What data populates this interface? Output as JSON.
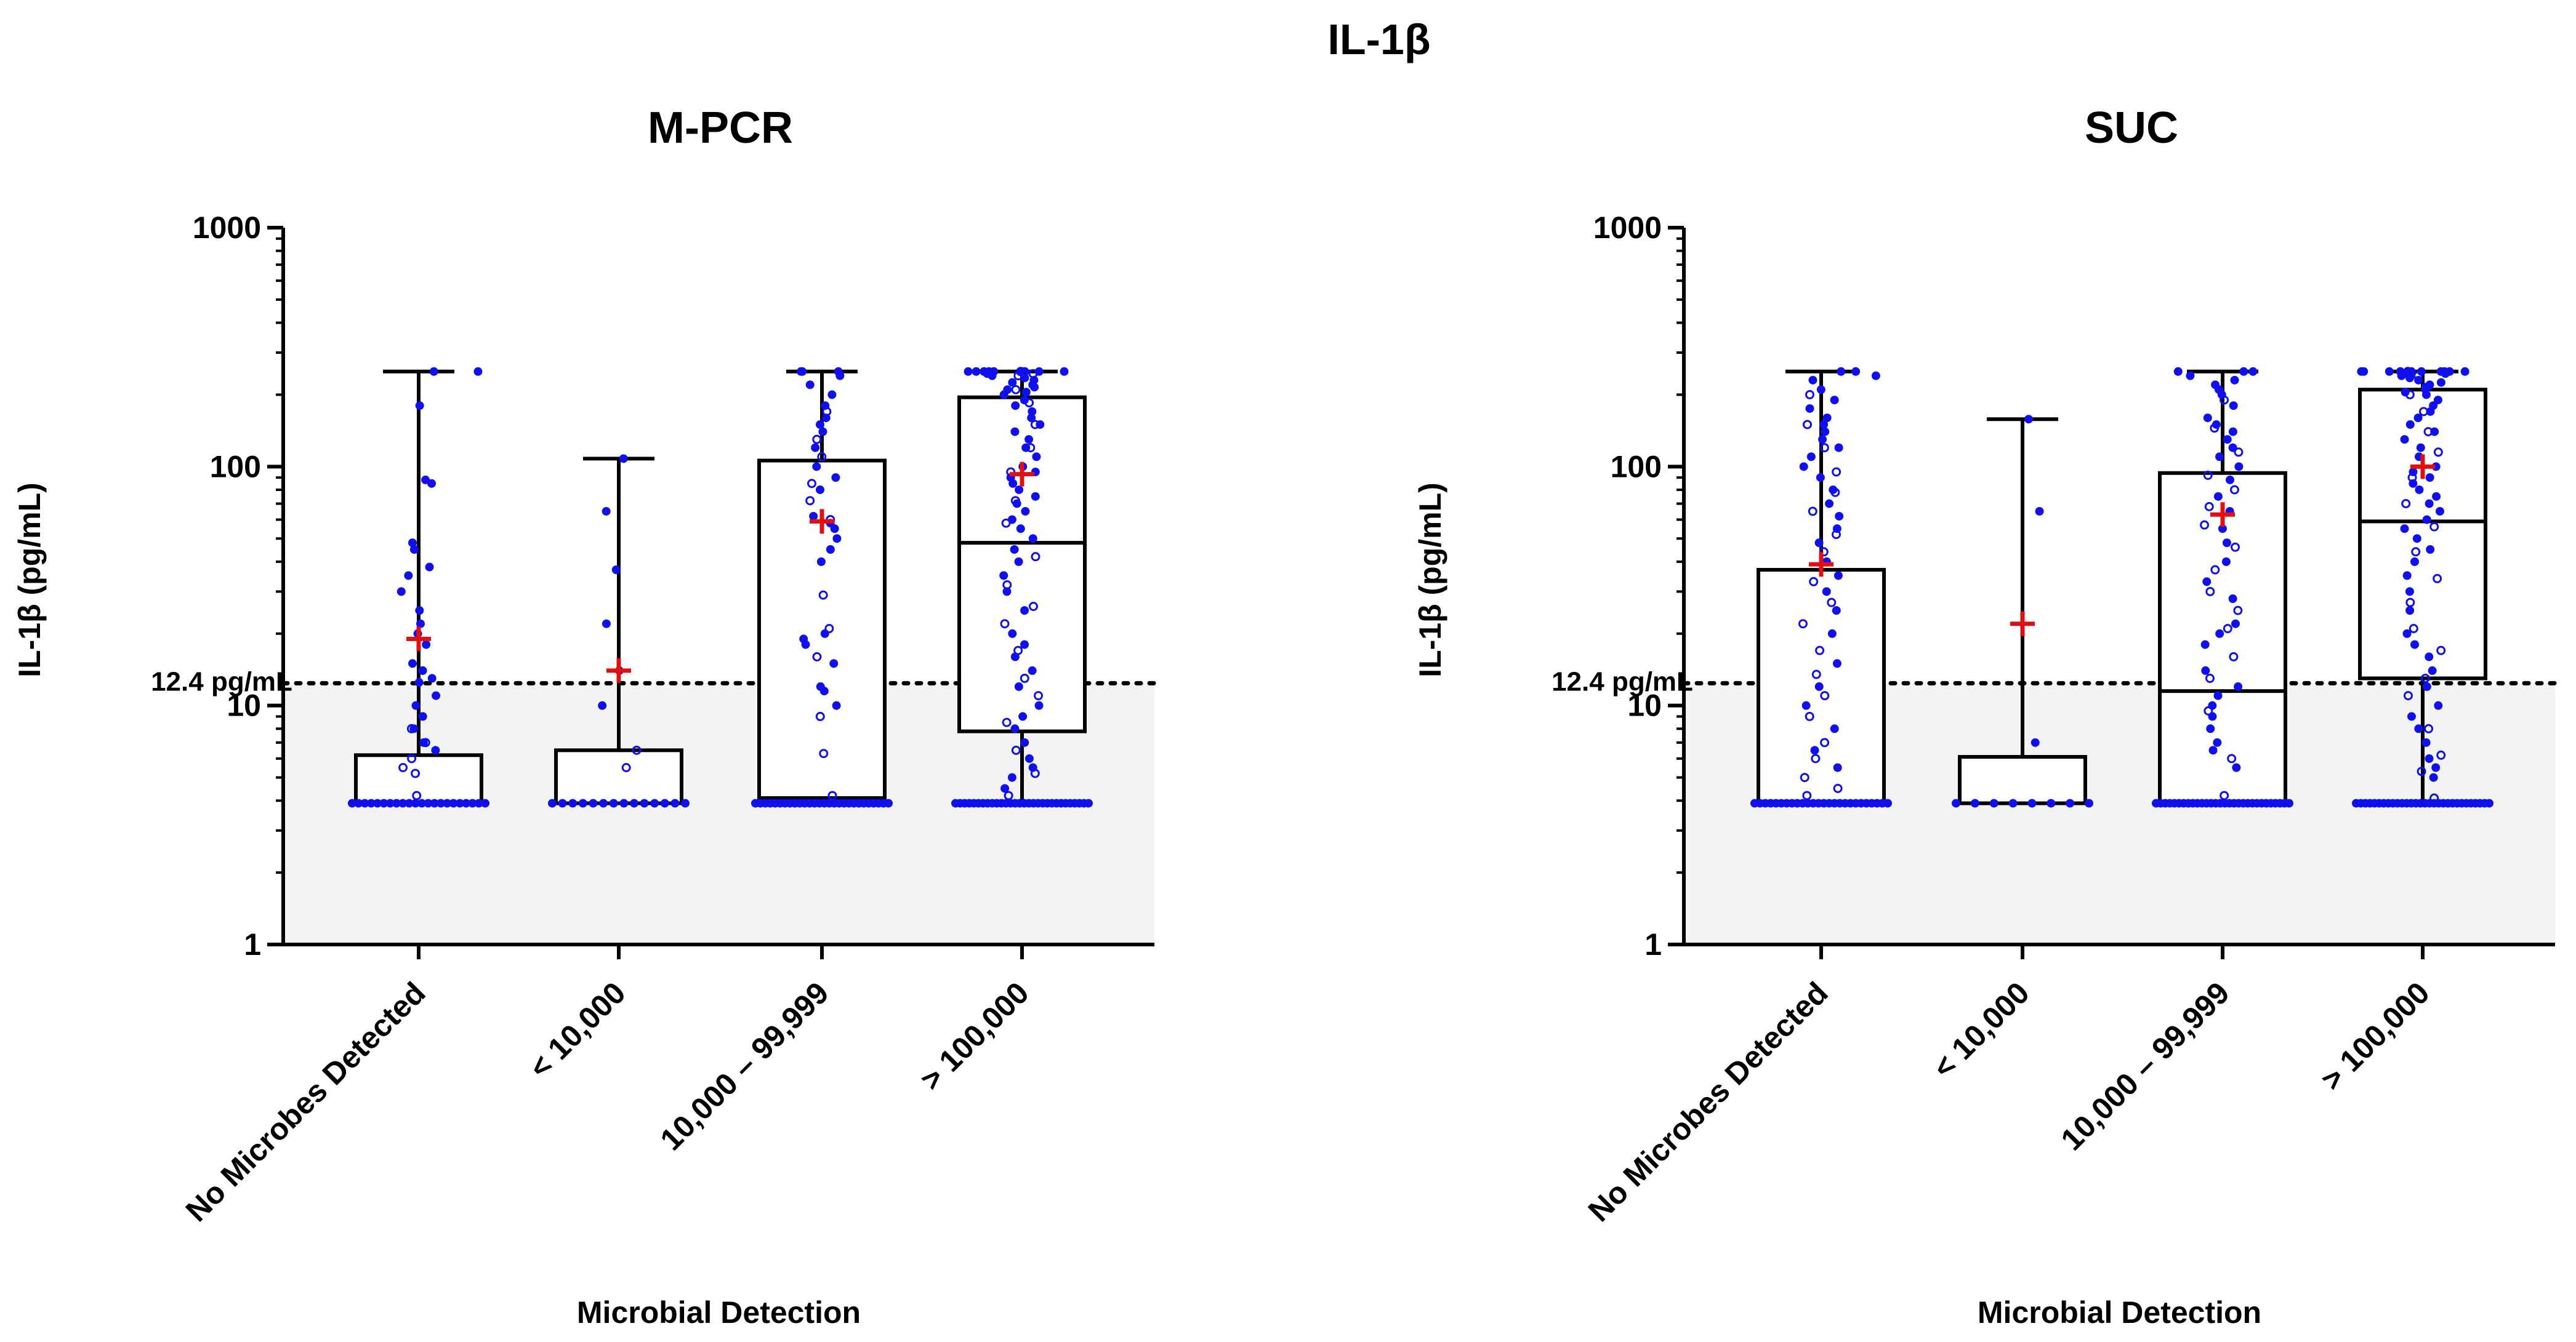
{
  "chart_data": [
    {
      "type": "box",
      "figure_title": "IL-1β",
      "title": "M-PCR",
      "xlabel": "Microbial Detection",
      "ylabel": "IL-1β (pg/mL)",
      "yscale": "log",
      "ylim": [
        1,
        1000
      ],
      "yticks": [
        "1",
        "10",
        "100",
        "1000"
      ],
      "reference_line": {
        "value": 12.4,
        "label": "12.4 pg/mL"
      },
      "categories": [
        "No Microbes Detected",
        "< 10,000",
        "10,000 – 99,999",
        "> 100,000"
      ],
      "boxes": [
        {
          "whisker_low": 3.9,
          "q1": 3.9,
          "median": 3.9,
          "q3": 6.2,
          "whisker_high": 250,
          "mean": 19
        },
        {
          "whisker_low": 3.9,
          "q1": 3.9,
          "median": 3.9,
          "q3": 6.5,
          "whisker_high": 108,
          "mean": 14
        },
        {
          "whisker_low": 3.9,
          "q1": 3.9,
          "median": 4.1,
          "q3": 106,
          "whisker_high": 250,
          "mean": 59
        },
        {
          "whisker_low": 3.9,
          "q1": 7.8,
          "median": 48,
          "q3": 195,
          "whisker_high": 250,
          "mean": 93
        }
      ],
      "points": [
        {
          "filled": [
            250,
            250,
            180,
            88,
            85,
            48,
            45,
            38,
            35,
            30,
            25,
            22,
            20,
            18,
            15,
            14,
            13,
            12.5,
            11,
            10,
            9,
            8,
            7,
            6.5
          ],
          "open": [
            5.2,
            5.5,
            6.0,
            7.0,
            8.0,
            4.2
          ],
          "floor_count": 22
        },
        {
          "filled": [
            108,
            65,
            37,
            22,
            14,
            10
          ],
          "open": [
            6.5,
            5.5
          ],
          "floor_count": 14
        },
        {
          "filled": [
            250,
            250,
            250,
            240,
            220,
            200,
            180,
            160,
            150,
            140,
            120,
            100,
            90,
            80,
            62,
            58,
            55,
            50,
            45,
            40,
            20,
            19,
            18,
            15,
            12,
            11.5,
            10
          ],
          "open": [
            170,
            130,
            110,
            85,
            72,
            60,
            29,
            21,
            16,
            9,
            6.3,
            4.2
          ],
          "floor_count": 28
        },
        {
          "filled": [
            250,
            250,
            250,
            250,
            250,
            250,
            250,
            250,
            250,
            250,
            245,
            240,
            235,
            230,
            225,
            220,
            215,
            210,
            205,
            200,
            190,
            180,
            170,
            160,
            150,
            140,
            130,
            120,
            110,
            100,
            95,
            90,
            85,
            80,
            75,
            70,
            65,
            60,
            55,
            50,
            45,
            40,
            35,
            30,
            25,
            20,
            18,
            16,
            14,
            12,
            10,
            9,
            8,
            7,
            6,
            5.5,
            5,
            4.5
          ],
          "open": [
            250,
            245,
            240,
            210,
            185,
            150,
            120,
            95,
            72,
            58,
            42,
            32,
            26,
            22,
            17,
            13,
            11,
            8.5,
            6.5,
            5.2,
            4.2
          ],
          "floor_count": 30
        }
      ]
    },
    {
      "type": "box",
      "title": "SUC",
      "xlabel": "Microbial Detection",
      "ylabel": "IL-1β (pg/mL)",
      "yscale": "log",
      "ylim": [
        1,
        1000
      ],
      "yticks": [
        "1",
        "10",
        "100",
        "1000"
      ],
      "reference_line": {
        "value": 12.4,
        "label": "12.4 pg/mL"
      },
      "categories": [
        "No Microbes Detected",
        "< 10,000",
        "10,000 – 99,999",
        "> 100,000"
      ],
      "boxes": [
        {
          "whisker_low": 3.9,
          "q1": 3.9,
          "median": 3.9,
          "q3": 37,
          "whisker_high": 250,
          "mean": 39
        },
        {
          "whisker_low": 3.9,
          "q1": 3.9,
          "median": 3.9,
          "q3": 6.1,
          "whisker_high": 158,
          "mean": 22
        },
        {
          "whisker_low": 3.9,
          "q1": 3.9,
          "median": 11.5,
          "q3": 94,
          "whisker_high": 250,
          "mean": 63
        },
        {
          "whisker_low": 3.9,
          "q1": 13,
          "median": 59,
          "q3": 210,
          "whisker_high": 250,
          "mean": 100
        }
      ],
      "points": [
        {
          "filled": [
            250,
            250,
            240,
            230,
            210,
            190,
            175,
            160,
            150,
            140,
            130,
            120,
            110,
            100,
            90,
            80,
            70,
            62,
            55,
            48,
            40,
            35,
            30,
            25,
            20,
            15,
            12,
            10,
            8,
            6.5,
            5.5
          ],
          "open": [
            200,
            150,
            120,
            95,
            78,
            65,
            52,
            44,
            33,
            27,
            22,
            17,
            13.5,
            11,
            9,
            7,
            6,
            5,
            4.5,
            4.2
          ],
          "floor_count": 26
        },
        {
          "filled": [
            158,
            65,
            7
          ],
          "open": [],
          "floor_count": 8
        },
        {
          "filled": [
            250,
            250,
            250,
            240,
            230,
            220,
            210,
            200,
            180,
            160,
            150,
            140,
            130,
            120,
            110,
            100,
            88,
            75,
            65,
            55,
            48,
            40,
            33,
            28,
            22,
            20,
            18,
            14,
            12,
            11,
            10,
            9,
            8,
            7,
            6.5,
            5.5
          ],
          "open": [
            190,
            145,
            115,
            92,
            80,
            68,
            57,
            46,
            37,
            30,
            25,
            21,
            16,
            13,
            9.5,
            6,
            4.2
          ],
          "floor_count": 30
        },
        {
          "filled": [
            250,
            250,
            250,
            250,
            250,
            250,
            250,
            250,
            250,
            250,
            250,
            245,
            240,
            235,
            230,
            225,
            220,
            215,
            210,
            205,
            200,
            190,
            180,
            170,
            160,
            150,
            140,
            130,
            120,
            110,
            100,
            95,
            90,
            85,
            80,
            75,
            70,
            65,
            60,
            55,
            50,
            45,
            40,
            35,
            30,
            25,
            20,
            18,
            16,
            14,
            12,
            10,
            9,
            8,
            7,
            6,
            5.5,
            5
          ],
          "open": [
            250,
            240,
            200,
            170,
            140,
            115,
            90,
            70,
            56,
            44,
            34,
            27,
            21,
            17,
            13,
            11,
            8,
            6.2,
            5.3,
            4.1
          ],
          "floor_count": 30
        }
      ]
    }
  ]
}
